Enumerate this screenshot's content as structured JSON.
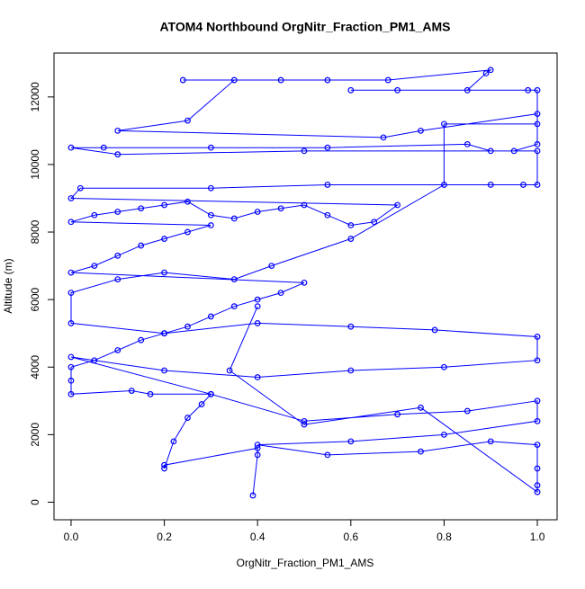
{
  "chart_data": {
    "type": "line",
    "title": "ATOM4 Northbound OrgNitr_Fraction_PM1_AMS",
    "x_label": "OrgNitr_Fraction_PM1_AMS",
    "y_label": "Altitude (m)",
    "color": "#0000ff",
    "markers": true,
    "xlim": [
      -0.0366,
      1.0424
    ],
    "ylim": [
      -520,
      13300
    ],
    "xticks": [
      {
        "value": 0,
        "label": "0.0"
      },
      0.2,
      0.4,
      0.6,
      0.8,
      {
        "value": 1,
        "label": "1.0"
      }
    ],
    "yticks": [
      0,
      2000,
      4000,
      6000,
      8000,
      10000,
      12000
    ],
    "x": [
      0.39,
      0.4,
      0.4,
      0.2,
      0.2,
      0.22,
      0.25,
      0.28,
      0.3,
      0.17,
      0.13,
      0.0,
      0.0,
      0.0,
      0.05,
      0.1,
      0.15,
      0.2,
      0.25,
      0.3,
      0.35,
      0.4,
      0.45,
      0.5,
      0.0,
      0.05,
      0.1,
      0.15,
      0.2,
      0.25,
      0.3,
      0.0,
      0.05,
      0.1,
      0.15,
      0.2,
      0.25,
      0.3,
      0.35,
      0.4,
      0.45,
      0.5,
      0.55,
      0.6,
      0.65,
      0.7,
      0.0,
      0.02,
      0.3,
      0.55,
      0.9,
      0.97,
      1.0,
      1.0,
      0.5,
      0.1,
      0.0,
      0.07,
      0.3,
      0.55,
      0.85,
      0.9,
      0.95,
      1.0,
      1.0,
      0.75,
      0.67,
      0.1,
      0.25,
      0.35,
      0.24,
      0.45,
      0.55,
      0.68,
      0.9,
      0.89,
      0.85,
      0.7,
      0.6,
      0.98,
      1.0,
      1.0,
      0.8,
      0.8,
      0.6,
      0.43,
      0.35,
      0.2,
      0.1,
      0.0,
      0.0,
      0.2,
      0.4,
      0.6,
      0.78,
      1.0,
      1.0,
      0.8,
      0.6,
      0.4,
      0.2,
      0.0,
      0.3,
      0.5,
      0.7,
      0.85,
      1.0,
      1.0,
      0.8,
      0.6,
      0.4,
      0.55,
      0.75,
      0.9,
      1.0,
      1.0,
      1.0,
      1.0,
      0.75,
      0.5,
      0.34,
      0.4
    ],
    "values": [
      200,
      1400,
      1600,
      1100,
      1000,
      1800,
      2500,
      2900,
      3200,
      3200,
      3300,
      3200,
      3600,
      4000,
      4200,
      4500,
      4800,
      5000,
      5200,
      5500,
      5800,
      6000,
      6200,
      6500,
      6800,
      7000,
      7300,
      7600,
      7800,
      8000,
      8200,
      8300,
      8500,
      8600,
      8700,
      8800,
      8900,
      8500,
      8400,
      8600,
      8700,
      8800,
      8500,
      8200,
      8300,
      8800,
      9000,
      9300,
      9300,
      9400,
      9400,
      9400,
      9400,
      10400,
      10400,
      10300,
      10500,
      10500,
      10500,
      10500,
      10600,
      10400,
      10400,
      10600,
      11500,
      11000,
      10800,
      11000,
      11300,
      12500,
      12500,
      12500,
      12500,
      12500,
      12800,
      12700,
      12200,
      12200,
      12200,
      12200,
      12200,
      11200,
      11200,
      9400,
      7800,
      7000,
      6600,
      6800,
      6600,
      6200,
      5300,
      5000,
      5300,
      5200,
      5100,
      4900,
      4200,
      4000,
      3900,
      3700,
      3900,
      4300,
      3200,
      2400,
      2600,
      2700,
      3000,
      2400,
      2000,
      1800,
      1700,
      1400,
      1500,
      1800,
      1700,
      1000,
      500,
      300,
      2800,
      2300,
      3900,
      5800
    ]
  }
}
